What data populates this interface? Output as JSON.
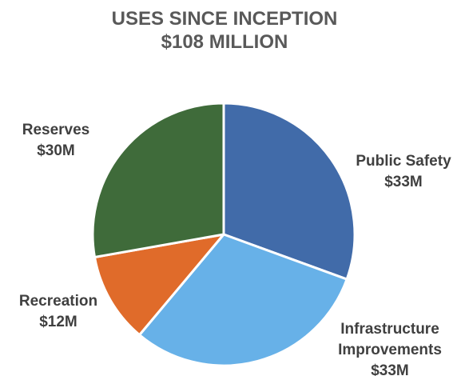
{
  "chart_data": {
    "type": "pie",
    "title": "USES SINCE INCEPTION",
    "subtitle": "$108 MILLION",
    "start_angle_deg": 0,
    "direction": "clockwise",
    "slices": [
      {
        "name": "Public Safety",
        "value_label": "$33M",
        "value": 33,
        "color": "#416BA9",
        "label_lines": [
          "Public Safety",
          "$33M"
        ]
      },
      {
        "name": "Infrastructure Improvements",
        "value_label": "$33M",
        "value": 33,
        "color": "#67B1E8",
        "label_lines": [
          "Infrastructure",
          "Improvements",
          "$33M"
        ]
      },
      {
        "name": "Recreation",
        "value_label": "$12M",
        "value": 12,
        "color": "#E06B2A",
        "label_lines": [
          "Recreation",
          "$12M"
        ]
      },
      {
        "name": "Reserves",
        "value_label": "$30M",
        "value": 30,
        "color": "#3F6B3A",
        "label_lines": [
          "Reserves",
          "$30M"
        ]
      }
    ],
    "legend": "none"
  }
}
